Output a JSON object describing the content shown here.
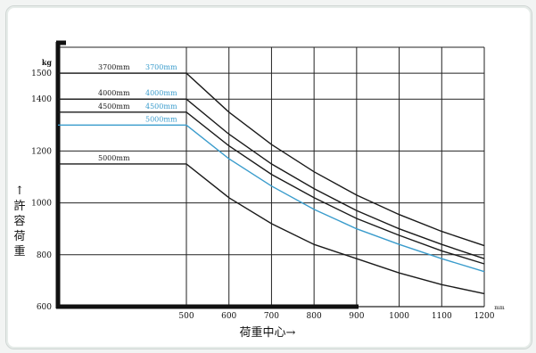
{
  "chart_data": {
    "type": "line",
    "x_unit": "mm",
    "y_unit": "kg",
    "xlabel": "荷重中心→",
    "ylabel_chars": [
      "↑",
      "許",
      "容",
      "荷",
      "重"
    ],
    "xlim": [
      0,
      1200
    ],
    "ylim": [
      600,
      1600
    ],
    "x_ticks": [
      500,
      600,
      700,
      800,
      900,
      1000,
      1100,
      1200
    ],
    "y_ticks": [
      600,
      800,
      1000,
      1200,
      1400,
      1500
    ],
    "grid": true,
    "series": [
      {
        "name": "3700mm",
        "label_side": "left",
        "color": "#1a1a1a",
        "points": [
          [
            0,
            1500
          ],
          [
            500,
            1500
          ],
          [
            600,
            1350
          ],
          [
            700,
            1225
          ],
          [
            800,
            1120
          ],
          [
            900,
            1030
          ],
          [
            1000,
            955
          ],
          [
            1100,
            890
          ],
          [
            1200,
            835
          ]
        ]
      },
      {
        "name": "4000mm",
        "label_side": "left",
        "color": "#1a1a1a",
        "points": [
          [
            0,
            1400
          ],
          [
            500,
            1400
          ],
          [
            600,
            1265
          ],
          [
            700,
            1150
          ],
          [
            800,
            1055
          ],
          [
            900,
            970
          ],
          [
            1000,
            900
          ],
          [
            1100,
            840
          ],
          [
            1200,
            785
          ]
        ]
      },
      {
        "name": "4500mm",
        "label_side": "left",
        "color": "#1a1a1a",
        "points": [
          [
            0,
            1350
          ],
          [
            500,
            1350
          ],
          [
            600,
            1220
          ],
          [
            700,
            1110
          ],
          [
            800,
            1020
          ],
          [
            900,
            940
          ],
          [
            1000,
            875
          ],
          [
            1100,
            815
          ],
          [
            1200,
            765
          ]
        ]
      },
      {
        "name": "3700mm",
        "label_side": "right",
        "color": "#3a9ccc",
        "points": [
          [
            500,
            1500
          ]
        ]
      },
      {
        "name": "4000mm",
        "label_side": "right",
        "color": "#3a9ccc",
        "points": [
          [
            500,
            1400
          ]
        ]
      },
      {
        "name": "4500mm",
        "label_side": "right",
        "color": "#3a9ccc",
        "points": [
          [
            500,
            1350
          ]
        ]
      },
      {
        "name": "5000mm",
        "label_side": "right",
        "color": "#3a9ccc",
        "points": [
          [
            0,
            1300
          ],
          [
            500,
            1300
          ],
          [
            600,
            1170
          ],
          [
            700,
            1065
          ],
          [
            800,
            975
          ],
          [
            900,
            900
          ],
          [
            1000,
            840
          ],
          [
            1100,
            785
          ],
          [
            1200,
            735
          ]
        ]
      },
      {
        "name": "5000mm",
        "label_side": "left",
        "color": "#1a1a1a",
        "points": [
          [
            0,
            1150
          ],
          [
            500,
            1150
          ],
          [
            600,
            1020
          ],
          [
            700,
            920
          ],
          [
            800,
            840
          ],
          [
            900,
            785
          ],
          [
            1000,
            730
          ],
          [
            1100,
            685
          ],
          [
            1200,
            650
          ]
        ]
      }
    ]
  }
}
